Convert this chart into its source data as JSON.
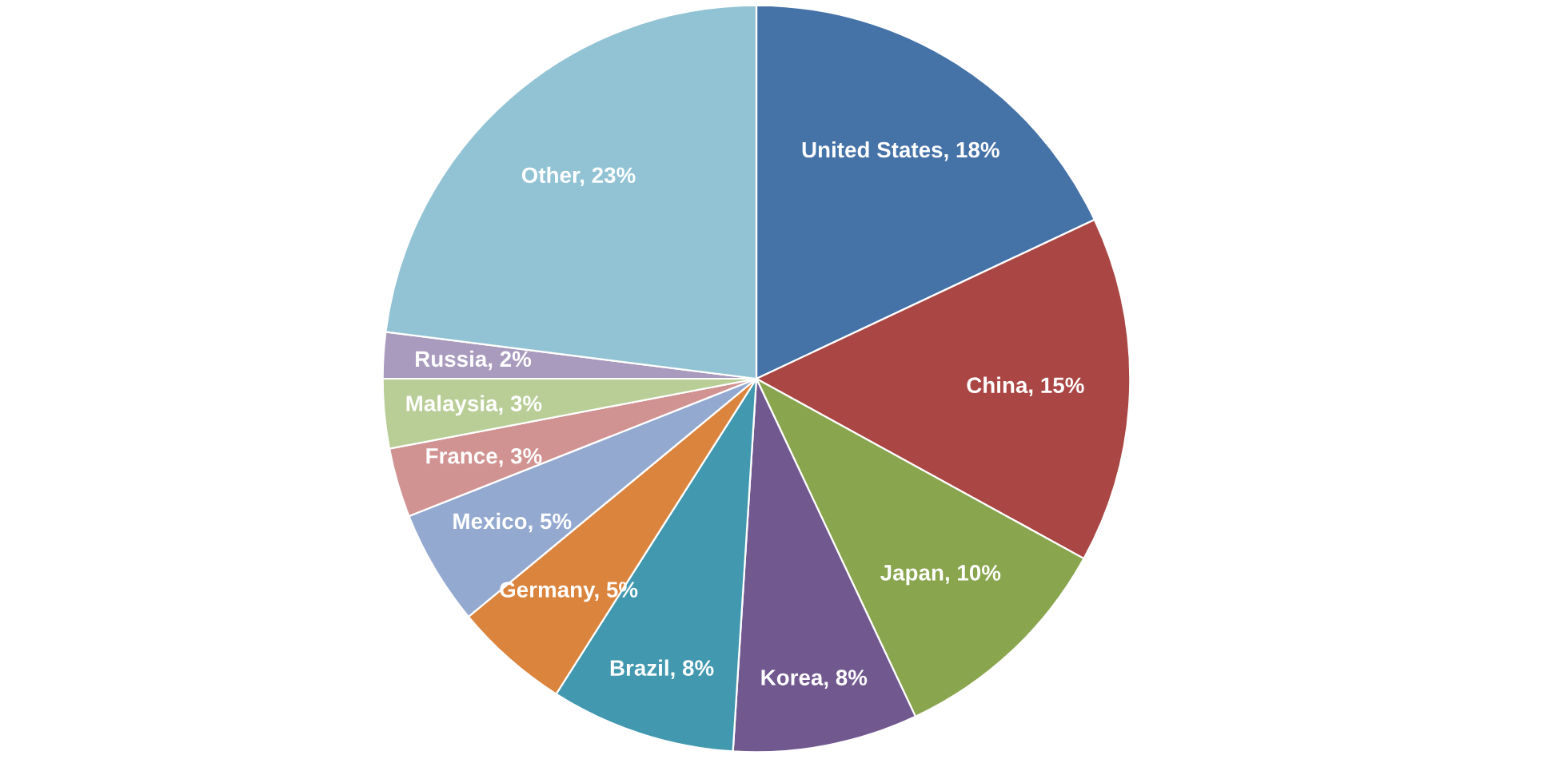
{
  "chart_data": {
    "type": "pie",
    "categories": [
      "United States",
      "China",
      "Japan",
      "Korea",
      "Brazil",
      "Germany",
      "Mexico",
      "France",
      "Malaysia",
      "Russia",
      "Other"
    ],
    "values": [
      18,
      15,
      10,
      8,
      8,
      5,
      5,
      3,
      3,
      2,
      23
    ],
    "value_labels": [
      "18%",
      "15%",
      "10%",
      "8%",
      "8%",
      "5%",
      "5%",
      "3%",
      "3%",
      "2%",
      "23%"
    ],
    "colors": [
      "#4572a7",
      "#aa4643",
      "#89a54e",
      "#71588f",
      "#4198af",
      "#db843d",
      "#93a9cf",
      "#d19392",
      "#b9cd96",
      "#a99bbd",
      "#92c3d4"
    ],
    "legend": false
  }
}
